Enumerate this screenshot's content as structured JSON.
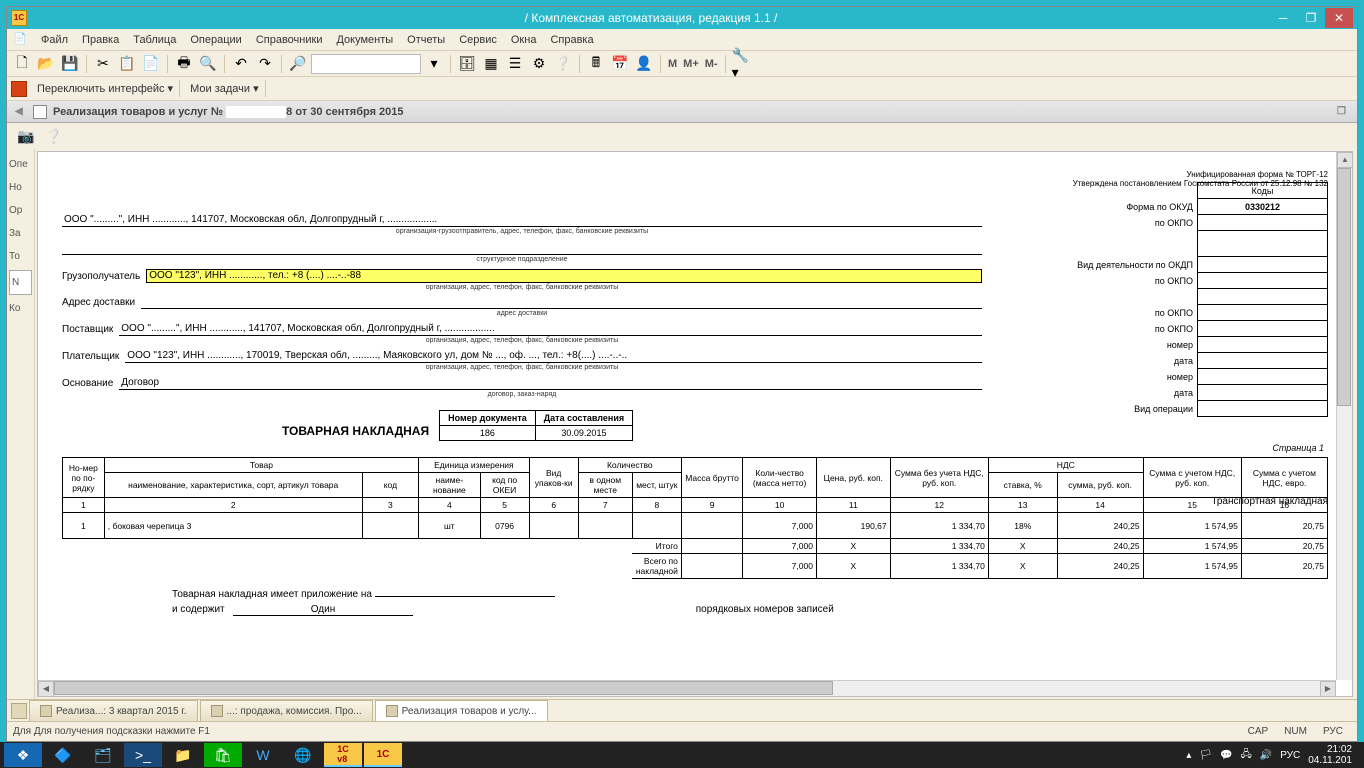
{
  "titlebar": {
    "app_icon": "1C",
    "title": "/ Комплексная автоматизация, редакция 1.1 /"
  },
  "menu": [
    "Файл",
    "Правка",
    "Таблица",
    "Операции",
    "Справочники",
    "Документы",
    "Отчеты",
    "Сервис",
    "Окна",
    "Справка"
  ],
  "toolbar2": {
    "switch": "Переключить интерфейс ▾",
    "tasks": "Мои задачи ▾"
  },
  "doctab": {
    "title": "Реализация товаров и услуг №",
    "suffix": "8 от 30 сентября 2015"
  },
  "leftgutter": [
    "Опе",
    "Но",
    "Ор",
    "За",
    "То",
    "N",
    "Ко"
  ],
  "form": {
    "unif": "Унифицированная форма № ТОРГ-12",
    "approved": "Утверждена постановлением Госкомстата России от 25.12.98 № 132",
    "codes_header": "Коды",
    "okud_label": "Форма по ОКУД",
    "okud": "0330212",
    "okpo_label": "по ОКПО",
    "okdp_label": "Вид деятельности по ОКДП",
    "number_label": "номер",
    "date_label": "дата",
    "operation_label": "Вид операции",
    "org_line": "ООО \".........\", ИНН ............, 141707, Московская обл, Долгопрудный г, ..................",
    "org_sub": "организация-грузоотправитель, адрес, телефон, факс, банковские реквизиты",
    "struct_sub": "структурное подразделение",
    "consignee_label": "Грузополучатель",
    "consignee": "ООО \"123\", ИНН ............, тел.: +8 (....) ....-..-88",
    "org_sub2": "организация, адрес, телефон, факс, банковские реквизиты",
    "delivery_label": "Адрес доставки",
    "delivery_sub": "адрес доставки",
    "supplier_label": "Поставщик",
    "supplier": "ООО \".........\", ИНН ............, 141707, Московская обл, Долгопрудный г, ..................",
    "payer_label": "Плательщик",
    "payer": "ООО \"123\", ИНН ............, 170019, Тверская обл, ........., Маяковского ул, дом № ..., оф. ..., тел.: +8(....) ....-..-..",
    "basis_label": "Основание",
    "basis": "Договор",
    "basis_sub": "договор, заказ-наряд",
    "doc_title": "ТОВАРНАЯ НАКЛАДНАЯ",
    "docnum_hdr": "Номер документа",
    "docdate_hdr": "Дата составления",
    "docnum": "186",
    "docdate": "30.09.2015",
    "transbill": "Транспортная накладная",
    "page": "Страница 1"
  },
  "table": {
    "headers": {
      "num": "Но-мер по по-рядку",
      "goods": "Товар",
      "name": "наименование, характеристика, сорт, артикул товара",
      "code": "код",
      "unit": "Единица измерения",
      "unit_name": "наиме-нование",
      "okei": "код по ОКЕИ",
      "pack": "Вид упаков-ки",
      "qty": "Количество",
      "in_one": "в одном месте",
      "places": "мест, штук",
      "gross": "Масса брутто",
      "net": "Коли-чество (масса нетто)",
      "price": "Цена, руб. коп.",
      "sum_novat": "Сумма без учета НДС, руб. коп.",
      "vat": "НДС",
      "vat_rate": "ставка, %",
      "vat_sum": "сумма, руб. коп.",
      "sum_vat": "Сумма с учетом НДС, руб. коп.",
      "sum_vat_eur": "Сумма с учетом НДС, евро."
    },
    "colnums": [
      "1",
      "2",
      "3",
      "4",
      "5",
      "6",
      "7",
      "8",
      "9",
      "10",
      "11",
      "12",
      "13",
      "14",
      "15",
      "16"
    ],
    "rows": [
      {
        "n": "1",
        "name": ", боковая черепица 3",
        "code": "",
        "uname": "шт",
        "okei": "0796",
        "pack": "",
        "inone": "",
        "places": "",
        "gross": "",
        "net": "7,000",
        "price": "190,67",
        "novat": "1 334,70",
        "vrate": "18%",
        "vsum": "240,25",
        "wvat": "1 574,95",
        "eur": "20,75"
      }
    ],
    "total_label": "Итого",
    "grand_label": "Всего по накладной",
    "totals": {
      "net": "7,000",
      "price": "X",
      "novat": "1 334,70",
      "vrate": "X",
      "vsum": "240,25",
      "wvat": "1 574,95",
      "eur": "20,75"
    }
  },
  "footer": {
    "append": "Товарная накладная имеет приложение на",
    "contains": "и содержит",
    "one": "Один",
    "records": "порядковых номеров записей"
  },
  "wintabs": [
    "Реализа...: 3 квартал 2015 г.",
    "...: продажа, комиссия. Про...",
    "Реализация товаров и услу..."
  ],
  "statusbar": {
    "hint": "Для получения подсказки нажмите F1",
    "cap": "CAP",
    "num": "NUM",
    "lang": "РУС"
  },
  "tray": {
    "time": "21:02",
    "date": "04.11.201",
    "lang": "РУС"
  }
}
